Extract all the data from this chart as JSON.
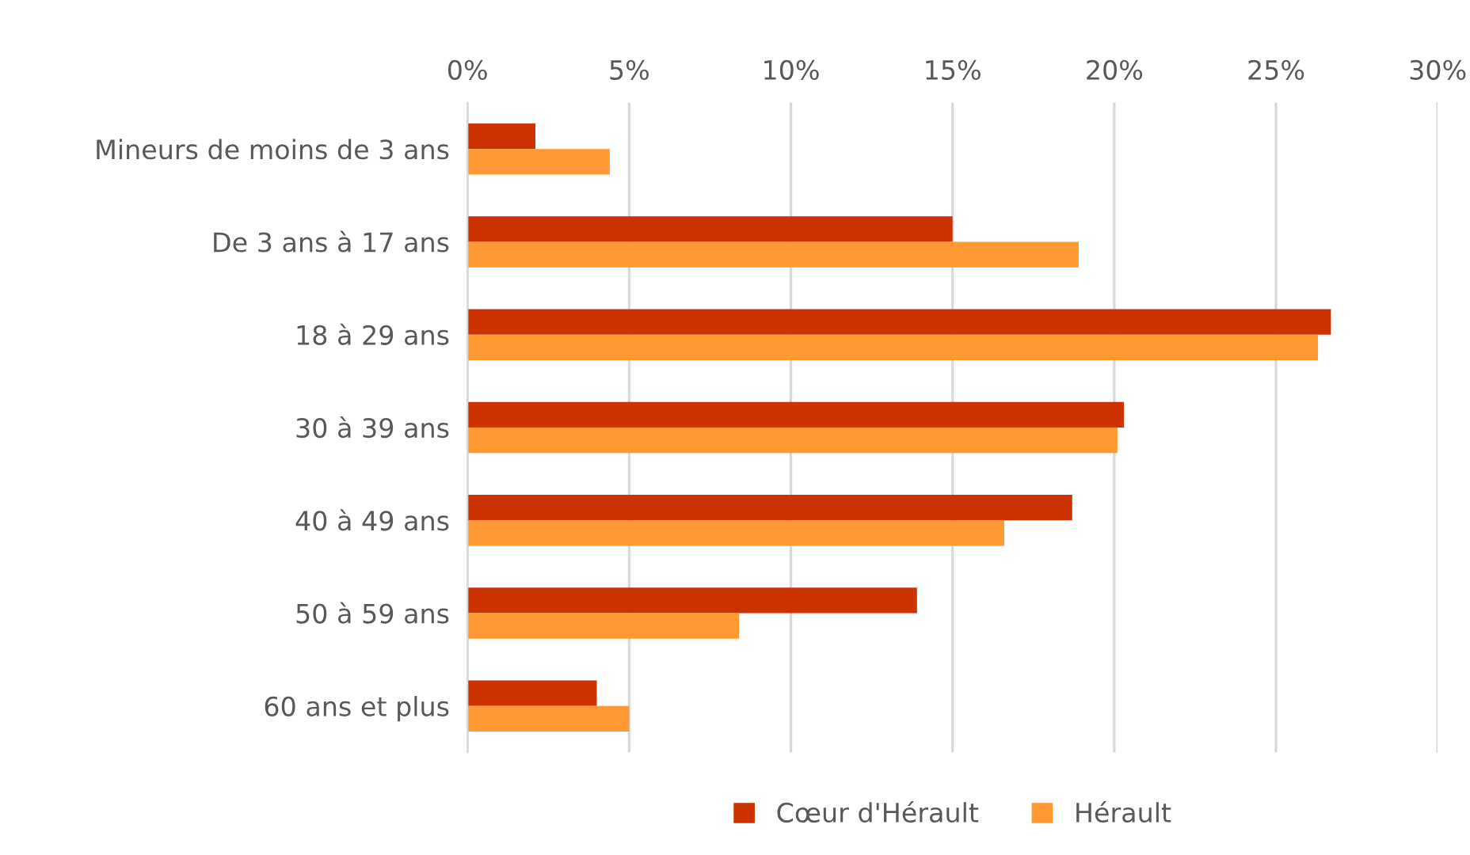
{
  "chart_data": {
    "type": "bar",
    "orientation": "horizontal",
    "categories": [
      "Mineurs de moins de 3 ans",
      "De 3 ans à 17 ans",
      "18 à 29 ans",
      "30 à 39 ans",
      "40 à 49 ans",
      "50 à 59 ans",
      "60 ans et plus"
    ],
    "series": [
      {
        "name": "Cœur d'Hérault",
        "color": "#cc3300",
        "values": [
          2.1,
          15.0,
          26.7,
          20.3,
          18.7,
          13.9,
          4.0
        ]
      },
      {
        "name": "Hérault",
        "color": "#ff9933",
        "values": [
          4.4,
          18.9,
          26.3,
          20.1,
          16.6,
          8.4,
          5.0
        ]
      }
    ],
    "xlim": [
      0,
      30
    ],
    "xticks": [
      {
        "value": 0,
        "label": "0%"
      },
      {
        "value": 5,
        "label": "5%"
      },
      {
        "value": 10,
        "label": "10%"
      },
      {
        "value": 15,
        "label": "15%"
      },
      {
        "value": 20,
        "label": "20%"
      },
      {
        "value": 25,
        "label": "25%"
      },
      {
        "value": 30,
        "label": "30%"
      }
    ],
    "grid": "x",
    "legend": "bottom"
  }
}
